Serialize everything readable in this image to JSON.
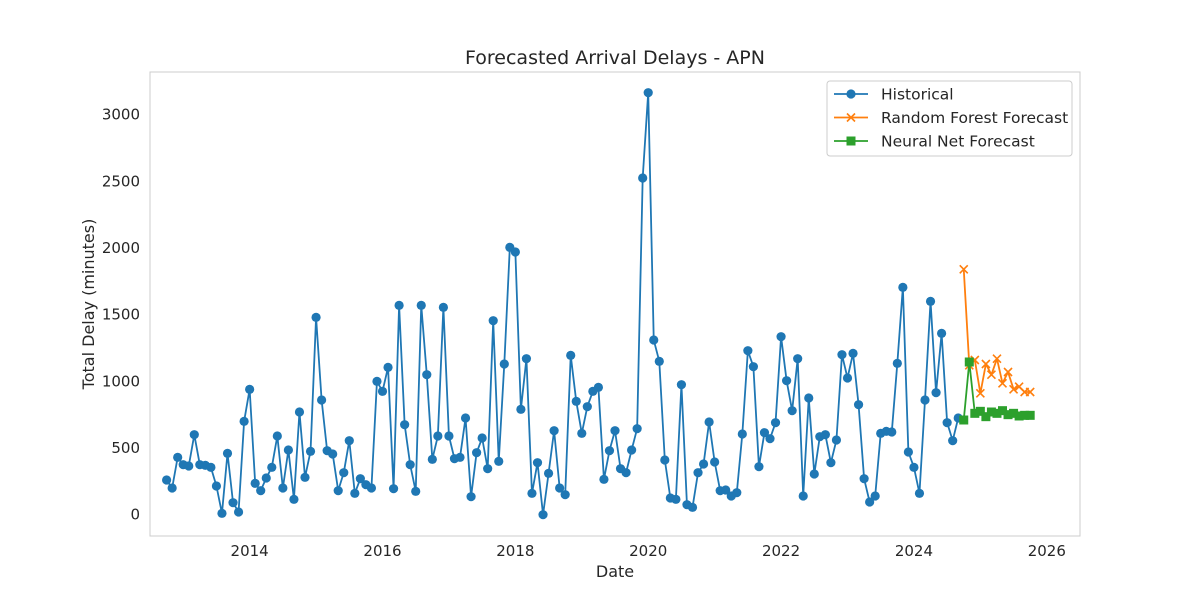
{
  "chart_data": {
    "type": "line",
    "title": "Forecasted Arrival Delays - APN",
    "xlabel": "Date",
    "ylabel": "Total Delay (minutes)",
    "xlim": [
      "2012-07-01",
      "2026-07-01"
    ],
    "ylim": [
      -160,
      3320
    ],
    "x_ticks": [
      "2014",
      "2016",
      "2018",
      "2020",
      "2022",
      "2024",
      "2026"
    ],
    "y_ticks": [
      0,
      500,
      1000,
      1500,
      2000,
      2500,
      3000
    ],
    "grid": false,
    "legend": {
      "position": "top-right",
      "entries": [
        "Historical",
        "Random Forest Forecast",
        "Neural Net Forecast"
      ]
    },
    "series": [
      {
        "name": "Historical",
        "color": "#1f77b4",
        "marker": "circle",
        "x": [
          "2012-10",
          "2012-11",
          "2012-12",
          "2013-01",
          "2013-02",
          "2013-03",
          "2013-04",
          "2013-05",
          "2013-06",
          "2013-07",
          "2013-08",
          "2013-09",
          "2013-10",
          "2013-11",
          "2013-12",
          "2014-01",
          "2014-02",
          "2014-03",
          "2014-04",
          "2014-05",
          "2014-06",
          "2014-07",
          "2014-08",
          "2014-09",
          "2014-10",
          "2014-11",
          "2014-12",
          "2015-01",
          "2015-02",
          "2015-03",
          "2015-04",
          "2015-05",
          "2015-06",
          "2015-07",
          "2015-08",
          "2015-09",
          "2015-10",
          "2015-11",
          "2015-12",
          "2016-01",
          "2016-02",
          "2016-03",
          "2016-04",
          "2016-05",
          "2016-06",
          "2016-07",
          "2016-08",
          "2016-09",
          "2016-10",
          "2016-11",
          "2016-12",
          "2017-01",
          "2017-02",
          "2017-03",
          "2017-04",
          "2017-05",
          "2017-06",
          "2017-07",
          "2017-08",
          "2017-09",
          "2017-10",
          "2017-11",
          "2017-12",
          "2018-01",
          "2018-02",
          "2018-03",
          "2018-04",
          "2018-05",
          "2018-06",
          "2018-07",
          "2018-08",
          "2018-09",
          "2018-10",
          "2018-11",
          "2018-12",
          "2019-01",
          "2019-02",
          "2019-03",
          "2019-04",
          "2019-05",
          "2019-06",
          "2019-07",
          "2019-08",
          "2019-09",
          "2019-10",
          "2019-11",
          "2019-12",
          "2020-01",
          "2020-02",
          "2020-03",
          "2020-04",
          "2020-05",
          "2020-06",
          "2020-07",
          "2020-08",
          "2020-09",
          "2020-10",
          "2020-11",
          "2020-12",
          "2021-01",
          "2021-02",
          "2021-03",
          "2021-04",
          "2021-05",
          "2021-06",
          "2021-07",
          "2021-08",
          "2021-09",
          "2021-10",
          "2021-11",
          "2021-12",
          "2022-01",
          "2022-02",
          "2022-03",
          "2022-04",
          "2022-05",
          "2022-06",
          "2022-07",
          "2022-08",
          "2022-09",
          "2022-10",
          "2022-11",
          "2022-12",
          "2023-01",
          "2023-02",
          "2023-03",
          "2023-04",
          "2023-05",
          "2023-06",
          "2023-07",
          "2023-08",
          "2023-09",
          "2023-10",
          "2023-11",
          "2023-12",
          "2024-01",
          "2024-02",
          "2024-03",
          "2024-04",
          "2024-05",
          "2024-06",
          "2024-07",
          "2024-08",
          "2024-09"
        ],
        "values": [
          260,
          200,
          430,
          375,
          365,
          600,
          375,
          370,
          355,
          215,
          10,
          460,
          90,
          20,
          700,
          940,
          235,
          180,
          275,
          355,
          590,
          200,
          485,
          115,
          770,
          280,
          475,
          1480,
          860,
          480,
          455,
          180,
          315,
          555,
          160,
          270,
          225,
          200,
          1000,
          925,
          1105,
          195,
          1570,
          675,
          375,
          175,
          1570,
          1050,
          415,
          590,
          1555,
          590,
          420,
          430,
          725,
          135,
          465,
          575,
          345,
          1455,
          400,
          1130,
          2005,
          1970,
          790,
          1170,
          160,
          390,
          0,
          310,
          630,
          200,
          150,
          1195,
          850,
          610,
          810,
          925,
          955,
          265,
          480,
          630,
          345,
          315,
          485,
          645,
          2525,
          3165,
          1310,
          1150,
          410,
          125,
          115,
          975,
          75,
          55,
          315,
          380,
          695,
          395,
          180,
          185,
          140,
          165,
          605,
          1230,
          1110,
          360,
          615,
          570,
          690,
          1335,
          1005,
          780,
          1170,
          140,
          875,
          305,
          585,
          600,
          390,
          560,
          1200,
          1025,
          1210,
          825,
          270,
          95,
          140,
          610,
          625,
          620,
          1135,
          1705,
          470,
          355,
          160,
          860,
          1600,
          915,
          1360,
          690,
          555,
          725
        ]
      },
      {
        "name": "Random Forest Forecast",
        "color": "#ff7f0e",
        "marker": "x",
        "x": [
          "2024-10",
          "2024-11",
          "2024-12",
          "2025-01",
          "2025-02",
          "2025-03",
          "2025-04",
          "2025-05",
          "2025-06",
          "2025-07",
          "2025-08",
          "2025-09",
          "2025-10"
        ],
        "values": [
          1840,
          1120,
          1160,
          910,
          1130,
          1050,
          1170,
          985,
          1070,
          940,
          960,
          920,
          920
        ]
      },
      {
        "name": "Neural Net Forecast",
        "color": "#2ca02c",
        "marker": "square",
        "x": [
          "2024-10",
          "2024-11",
          "2024-12",
          "2025-01",
          "2025-02",
          "2025-03",
          "2025-04",
          "2025-05",
          "2025-06",
          "2025-07",
          "2025-08",
          "2025-09",
          "2025-10"
        ],
        "values": [
          710,
          1145,
          760,
          775,
          735,
          770,
          760,
          780,
          750,
          760,
          740,
          745,
          745
        ]
      }
    ]
  }
}
